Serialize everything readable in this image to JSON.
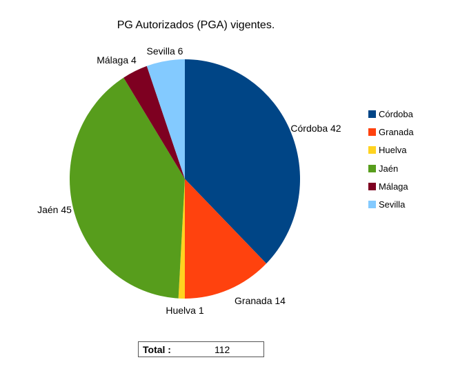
{
  "title": "PG Autorizados (PGA) vigentes.",
  "chart_data": {
    "type": "pie",
    "title": "PG Autorizados (PGA) vigentes.",
    "categories": [
      "Córdoba",
      "Granada",
      "Huelva",
      "Jaén",
      "Málaga",
      "Sevilla"
    ],
    "values": [
      42,
      14,
      1,
      45,
      4,
      6
    ],
    "colors": [
      "#004586",
      "#FF420E",
      "#FFD320",
      "#579D1C",
      "#7E0021",
      "#83CAFF"
    ],
    "slice_labels": [
      "Córdoba 42",
      "Granada 14",
      "Huelva 1",
      "Jaén 45",
      "Málaga 4",
      "Sevilla 6"
    ],
    "total": 112,
    "start_angle_deg": 0,
    "direction": "clockwise",
    "legend_position": "right",
    "grid": false
  },
  "legend": {
    "items": [
      {
        "label": "Córdoba",
        "color": "#004586"
      },
      {
        "label": "Granada",
        "color": "#FF420E"
      },
      {
        "label": "Huelva",
        "color": "#FFD320"
      },
      {
        "label": "Jaén",
        "color": "#579D1C"
      },
      {
        "label": "Málaga",
        "color": "#7E0021"
      },
      {
        "label": "Sevilla",
        "color": "#83CAFF"
      }
    ]
  },
  "total_box": {
    "label": "Total :",
    "value": "112"
  }
}
